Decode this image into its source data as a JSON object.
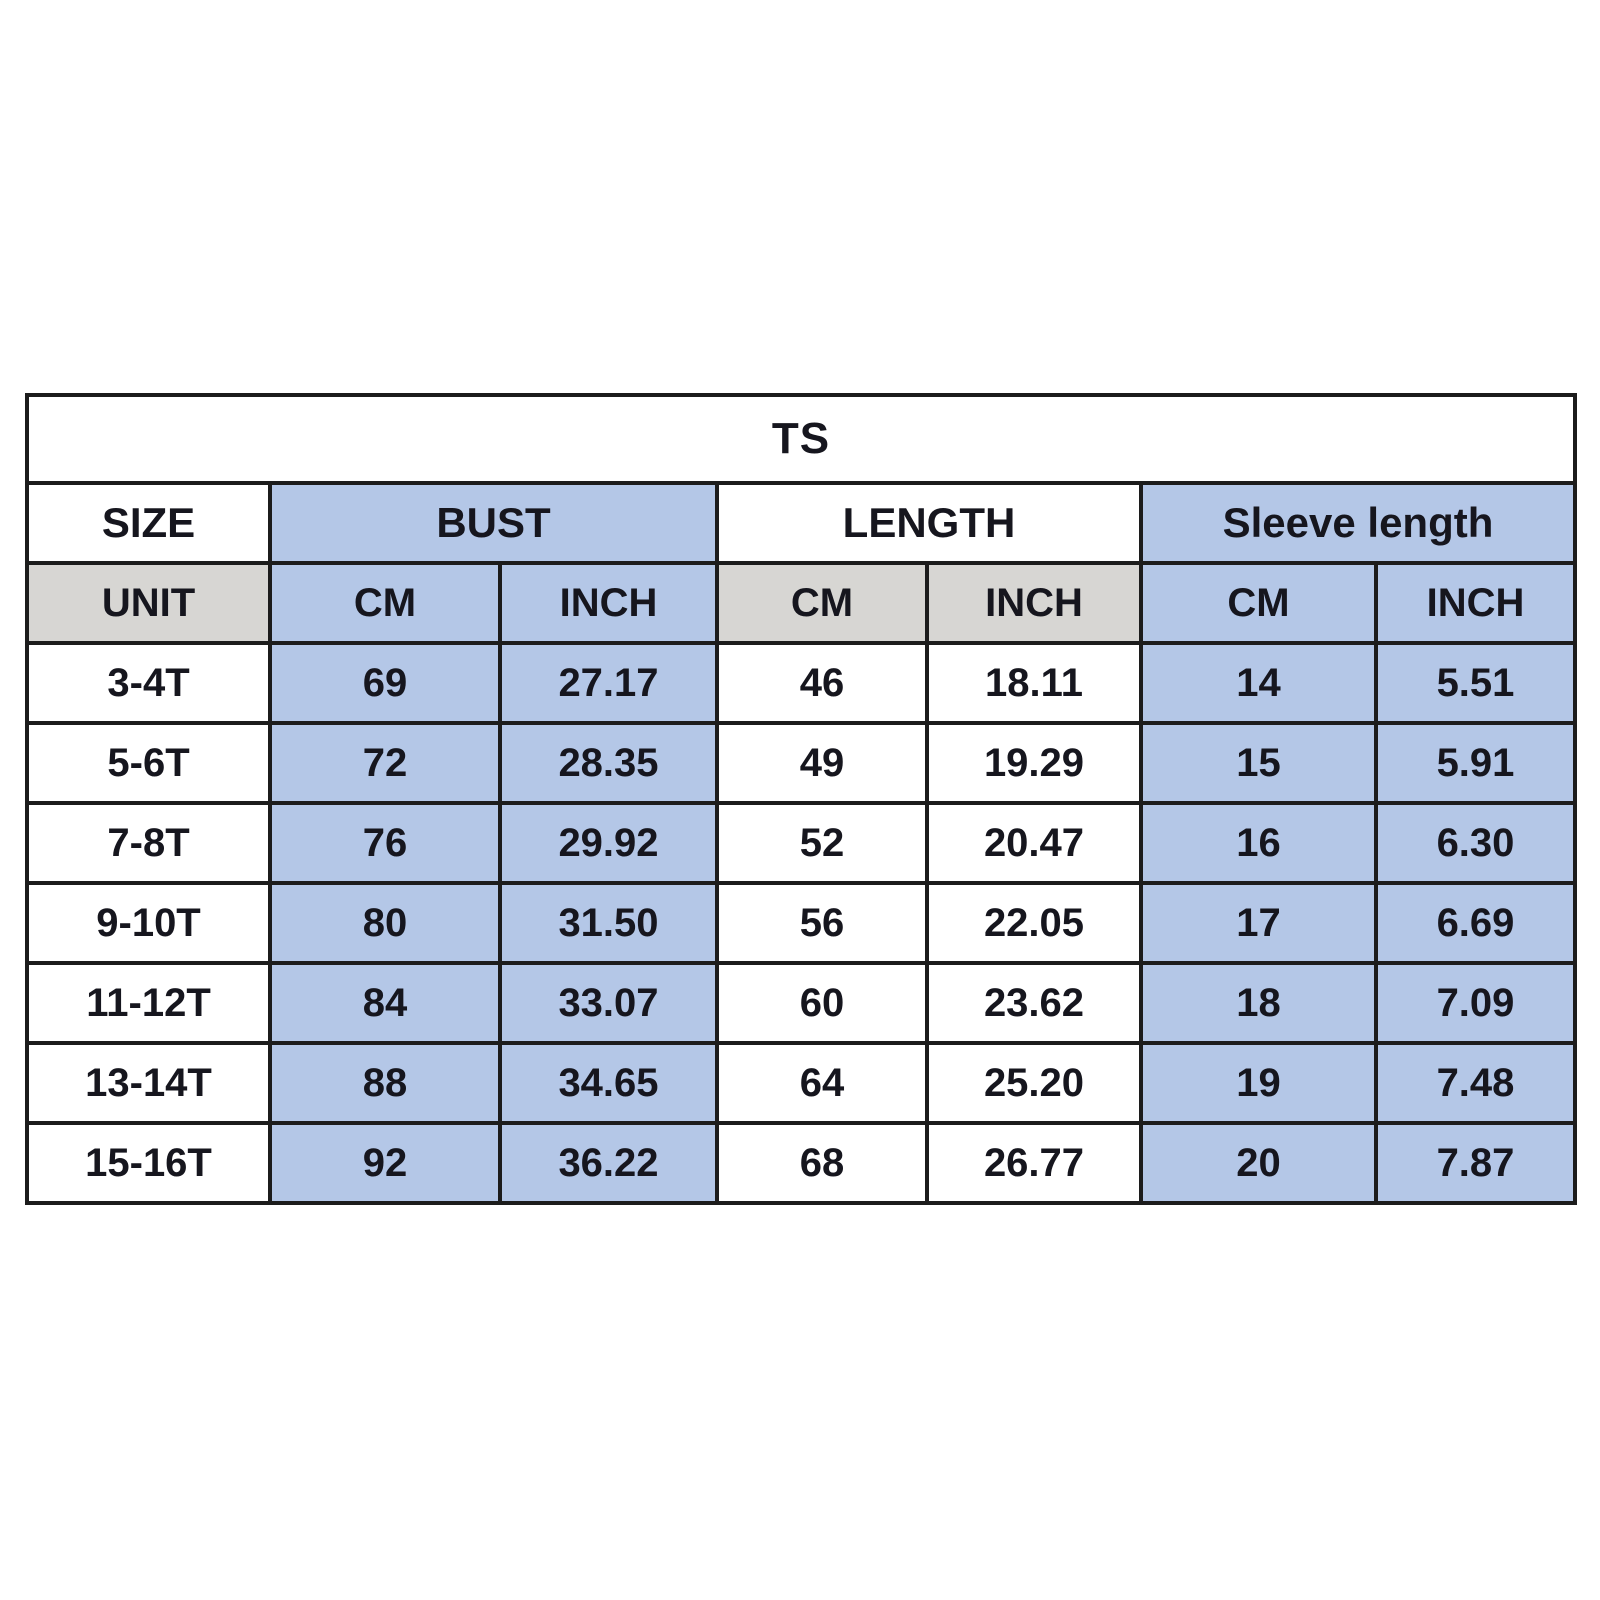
{
  "colors": {
    "cell_blue": "#b4c7e7",
    "cell_gray": "#d7d6d3",
    "cell_white": "#ffffff",
    "border": "#1c1c1c",
    "text": "#16161e"
  },
  "chart_data": {
    "type": "table",
    "title": "TS",
    "column_groups": [
      {
        "label": "SIZE",
        "span": 1
      },
      {
        "label": "BUST",
        "span": 2
      },
      {
        "label": "LENGTH",
        "span": 2
      },
      {
        "label": "Sleeve length",
        "span": 2
      }
    ],
    "unit_row": [
      "UNIT",
      "CM",
      "INCH",
      "CM",
      "INCH",
      "CM",
      "INCH"
    ],
    "rows": [
      [
        "3-4T",
        "69",
        "27.17",
        "46",
        "18.11",
        "14",
        "5.51"
      ],
      [
        "5-6T",
        "72",
        "28.35",
        "49",
        "19.29",
        "15",
        "5.91"
      ],
      [
        "7-8T",
        "76",
        "29.92",
        "52",
        "20.47",
        "16",
        "6.30"
      ],
      [
        "9-10T",
        "80",
        "31.50",
        "56",
        "22.05",
        "17",
        "6.69"
      ],
      [
        "11-12T",
        "84",
        "33.07",
        "60",
        "23.62",
        "18",
        "7.09"
      ],
      [
        "13-14T",
        "88",
        "34.65",
        "64",
        "25.20",
        "19",
        "7.48"
      ],
      [
        "15-16T",
        "92",
        "36.22",
        "68",
        "26.77",
        "20",
        "7.87"
      ]
    ]
  }
}
